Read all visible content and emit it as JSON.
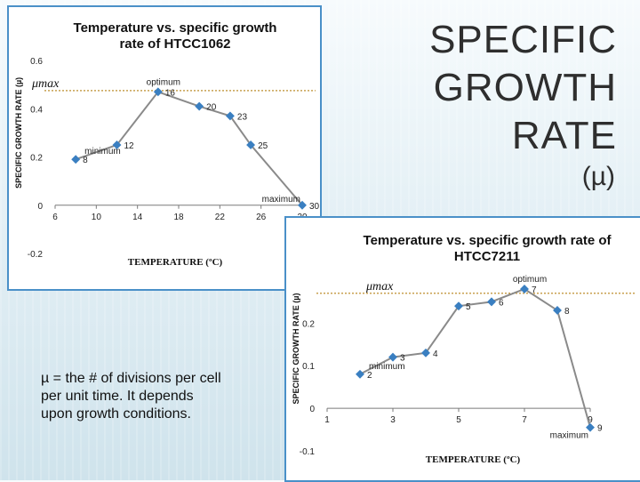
{
  "slide": {
    "title_lines": [
      "SPECIFIC",
      "GROWTH",
      "RATE"
    ],
    "symbol": "(µ)",
    "note": "µ = the # of divisions per cell per unit time.  It depends upon growth conditions."
  },
  "chart_data": [
    {
      "type": "line",
      "title_lines": [
        "Temperature vs. specific growth",
        "rate of HTCC1062"
      ],
      "xlabel": "TEMPERATURE (ºC)",
      "ylabel": "SPECIFIC GROWTH RATE (µ)",
      "x_ticks": [
        "6",
        "10",
        "14",
        "18",
        "22",
        "26",
        "30"
      ],
      "y_ticks": [
        "-0.2",
        "0",
        "0.2",
        "0.4",
        "0.6"
      ],
      "xlim": [
        6,
        30
      ],
      "ylim": [
        -0.2,
        0.6
      ],
      "mu_max_label": "μmax",
      "mu_max_value": 0.475,
      "points": [
        {
          "x": 8,
          "y": 0.19,
          "label": "8"
        },
        {
          "x": 12,
          "y": 0.25,
          "label": "12"
        },
        {
          "x": 16,
          "y": 0.47,
          "label": "16"
        },
        {
          "x": 20,
          "y": 0.41,
          "label": "20"
        },
        {
          "x": 23,
          "y": 0.37,
          "label": "23"
        },
        {
          "x": 25,
          "y": 0.25,
          "label": "25"
        },
        {
          "x": 30,
          "y": 0.0,
          "label": "30"
        }
      ],
      "annotations": [
        {
          "text": "minimum",
          "x": 8
        },
        {
          "text": "optimum",
          "x": 16
        },
        {
          "text": "maximum",
          "x": 30
        }
      ],
      "color": "#8a8a8a",
      "marker_color": "#3a7fc1"
    },
    {
      "type": "line",
      "title_lines": [
        "Temperature vs. specific growth rate of",
        "HTCC7211"
      ],
      "xlabel": "TEMPERATURE (ºC)",
      "ylabel": "SPECIFIC GROWTH RATE (µ)",
      "x_ticks": [
        "1",
        "3",
        "5",
        "7",
        "9"
      ],
      "y_ticks": [
        "-0.1",
        "0",
        "0.1",
        "0.2"
      ],
      "xlim": [
        1,
        9
      ],
      "ylim": [
        -0.1,
        0.28
      ],
      "mu_max_label": "μmax",
      "mu_max_value": 0.27,
      "points": [
        {
          "x": 2,
          "y": 0.08,
          "label": "2"
        },
        {
          "x": 3,
          "y": 0.12,
          "label": "3"
        },
        {
          "x": 4,
          "y": 0.13,
          "label": "4"
        },
        {
          "x": 5,
          "y": 0.24,
          "label": "5"
        },
        {
          "x": 6,
          "y": 0.25,
          "label": "6"
        },
        {
          "x": 7,
          "y": 0.28,
          "label": "7"
        },
        {
          "x": 8,
          "y": 0.23,
          "label": "8"
        },
        {
          "x": 9,
          "y": -0.045,
          "label": "9"
        }
      ],
      "annotations": [
        {
          "text": "minimum",
          "x": 2
        },
        {
          "text": "optimum",
          "x": 7
        },
        {
          "text": "maximum",
          "x": 9
        }
      ],
      "color": "#8a8a8a",
      "marker_color": "#3a7fc1"
    }
  ]
}
